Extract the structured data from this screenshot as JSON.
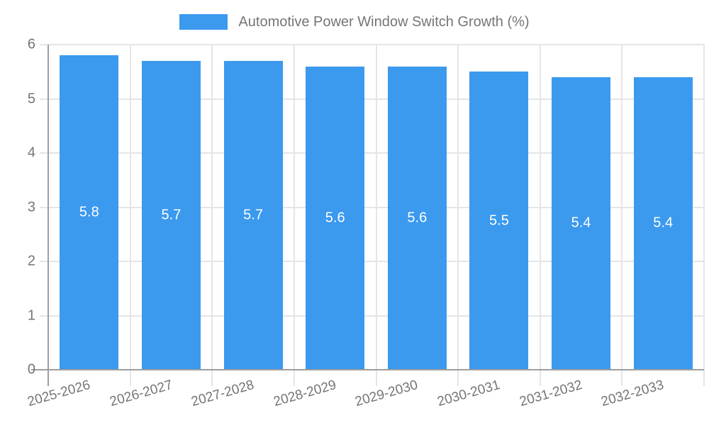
{
  "chart_data": {
    "type": "bar",
    "title": "Automotive Power Window Switch Growth (%)",
    "categories": [
      "2025-2026",
      "2026-2027",
      "2027-2028",
      "2028-2029",
      "2029-2030",
      "2030-2031",
      "2031-2032",
      "2032-2033"
    ],
    "values": [
      5.8,
      5.7,
      5.7,
      5.6,
      5.6,
      5.5,
      5.4,
      5.4
    ],
    "series": [
      {
        "name": "Automotive Power Window Switch Growth (%)",
        "values": [
          5.8,
          5.7,
          5.7,
          5.6,
          5.6,
          5.5,
          5.4,
          5.4
        ]
      }
    ],
    "value_labels": [
      "5.8",
      "5.7",
      "5.7",
      "5.6",
      "5.6",
      "5.5",
      "5.4",
      "5.4"
    ],
    "xlabel": "",
    "ylabel": "",
    "ylim": [
      0,
      6
    ],
    "yticks": [
      0,
      1,
      2,
      3,
      4,
      5,
      6
    ],
    "grid": true,
    "legend_position": "top",
    "colors": {
      "bar": "#3b99ee",
      "grid": "#e5e5e5",
      "axis": "#9e9e9e",
      "text": "#757575",
      "value_label": "#ffffff",
      "background": "#ffffff"
    }
  }
}
